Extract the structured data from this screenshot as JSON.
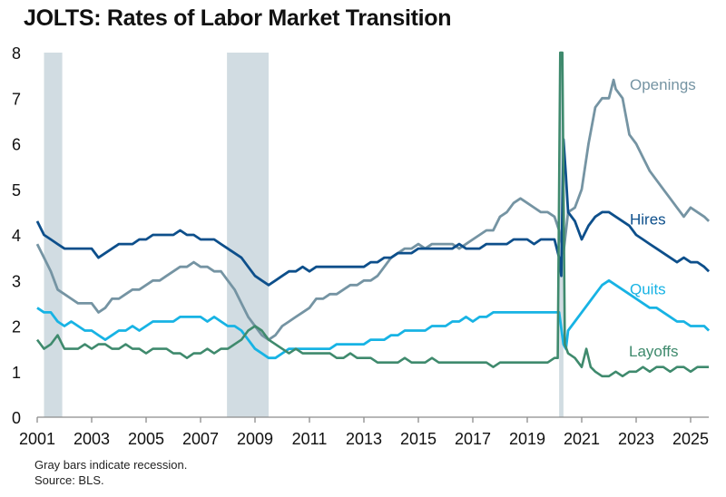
{
  "chart_data": {
    "type": "line",
    "title": "JOLTS: Rates of Labor Market Transition",
    "xlabel": "",
    "ylabel": "",
    "xlim": [
      2001.0,
      2025.67
    ],
    "ylim": [
      0,
      8
    ],
    "y_ticks": [
      0,
      1,
      2,
      3,
      4,
      5,
      6,
      7,
      8
    ],
    "x_ticks": [
      2001,
      2003,
      2005,
      2007,
      2009,
      2011,
      2013,
      2015,
      2017,
      2019,
      2021,
      2023,
      2025
    ],
    "x_tick_labels": [
      "2001",
      "2003",
      "2005",
      "2007",
      "2009",
      "2011",
      "2013",
      "2015",
      "2017",
      "2019",
      "2021",
      "2023",
      "2025"
    ],
    "grid": false,
    "legend": "inline labels at right end of series",
    "recessions": [
      {
        "start": 2001.25,
        "end": 2001.92
      },
      {
        "start": 2007.97,
        "end": 2009.5
      },
      {
        "start": 2020.17,
        "end": 2020.33
      }
    ],
    "series": [
      {
        "name": "Openings",
        "label": "Openings",
        "color": "#7594a3",
        "x": [
          2001.0,
          2001.25,
          2001.5,
          2001.75,
          2002.0,
          2002.25,
          2002.5,
          2002.75,
          2003.0,
          2003.25,
          2003.5,
          2003.75,
          2004.0,
          2004.25,
          2004.5,
          2004.75,
          2005.0,
          2005.25,
          2005.5,
          2005.75,
          2006.0,
          2006.25,
          2006.5,
          2006.75,
          2007.0,
          2007.25,
          2007.5,
          2007.75,
          2008.0,
          2008.25,
          2008.5,
          2008.75,
          2009.0,
          2009.25,
          2009.5,
          2009.75,
          2010.0,
          2010.25,
          2010.5,
          2010.75,
          2011.0,
          2011.25,
          2011.5,
          2011.75,
          2012.0,
          2012.25,
          2012.5,
          2012.75,
          2013.0,
          2013.25,
          2013.5,
          2013.75,
          2014.0,
          2014.25,
          2014.5,
          2014.75,
          2015.0,
          2015.25,
          2015.5,
          2015.75,
          2016.0,
          2016.25,
          2016.5,
          2016.75,
          2017.0,
          2017.25,
          2017.5,
          2017.75,
          2018.0,
          2018.25,
          2018.5,
          2018.75,
          2019.0,
          2019.25,
          2019.5,
          2019.75,
          2020.0,
          2020.17,
          2020.33,
          2020.5,
          2020.75,
          2021.0,
          2021.25,
          2021.5,
          2021.75,
          2022.0,
          2022.17,
          2022.25,
          2022.5,
          2022.75,
          2023.0,
          2023.25,
          2023.5,
          2023.75,
          2024.0,
          2024.25,
          2024.5,
          2024.75,
          2025.0,
          2025.25,
          2025.5,
          2025.67
        ],
        "values": [
          3.8,
          3.5,
          3.2,
          2.8,
          2.7,
          2.6,
          2.5,
          2.5,
          2.5,
          2.3,
          2.4,
          2.6,
          2.6,
          2.7,
          2.8,
          2.8,
          2.9,
          3.0,
          3.0,
          3.1,
          3.2,
          3.3,
          3.3,
          3.4,
          3.3,
          3.3,
          3.2,
          3.2,
          3.0,
          2.8,
          2.5,
          2.2,
          2.0,
          1.8,
          1.7,
          1.8,
          2.0,
          2.1,
          2.2,
          2.3,
          2.4,
          2.6,
          2.6,
          2.7,
          2.7,
          2.8,
          2.9,
          2.9,
          3.0,
          3.0,
          3.1,
          3.3,
          3.5,
          3.6,
          3.7,
          3.7,
          3.8,
          3.7,
          3.8,
          3.8,
          3.8,
          3.8,
          3.7,
          3.8,
          3.9,
          4.0,
          4.1,
          4.1,
          4.4,
          4.5,
          4.7,
          4.8,
          4.7,
          4.6,
          4.5,
          4.5,
          4.4,
          4.1,
          3.6,
          4.5,
          4.6,
          5.0,
          6.0,
          6.8,
          7.0,
          7.0,
          7.4,
          7.2,
          7.0,
          6.2,
          6.0,
          5.7,
          5.4,
          5.2,
          5.0,
          4.8,
          4.6,
          4.4,
          4.6,
          4.5,
          4.4,
          4.3
        ]
      },
      {
        "name": "Hires",
        "label": "Hires",
        "color": "#0d4f8b",
        "x": [
          2001.0,
          2001.25,
          2001.5,
          2001.75,
          2002.0,
          2002.25,
          2002.5,
          2002.75,
          2003.0,
          2003.25,
          2003.5,
          2003.75,
          2004.0,
          2004.25,
          2004.5,
          2004.75,
          2005.0,
          2005.25,
          2005.5,
          2005.75,
          2006.0,
          2006.25,
          2006.5,
          2006.75,
          2007.0,
          2007.25,
          2007.5,
          2007.75,
          2008.0,
          2008.25,
          2008.5,
          2008.75,
          2009.0,
          2009.25,
          2009.5,
          2009.75,
          2010.0,
          2010.25,
          2010.5,
          2010.75,
          2011.0,
          2011.25,
          2011.5,
          2011.75,
          2012.0,
          2012.25,
          2012.5,
          2012.75,
          2013.0,
          2013.25,
          2013.5,
          2013.75,
          2014.0,
          2014.25,
          2014.5,
          2014.75,
          2015.0,
          2015.25,
          2015.5,
          2015.75,
          2016.0,
          2016.25,
          2016.5,
          2016.75,
          2017.0,
          2017.25,
          2017.5,
          2017.75,
          2018.0,
          2018.25,
          2018.5,
          2018.75,
          2019.0,
          2019.25,
          2019.5,
          2019.75,
          2020.0,
          2020.17,
          2020.25,
          2020.33,
          2020.42,
          2020.5,
          2020.75,
          2021.0,
          2021.25,
          2021.5,
          2021.75,
          2022.0,
          2022.25,
          2022.5,
          2022.75,
          2023.0,
          2023.25,
          2023.5,
          2023.75,
          2024.0,
          2024.25,
          2024.5,
          2024.75,
          2025.0,
          2025.25,
          2025.5,
          2025.67
        ],
        "values": [
          4.3,
          4.0,
          3.9,
          3.8,
          3.7,
          3.7,
          3.7,
          3.7,
          3.7,
          3.5,
          3.6,
          3.7,
          3.8,
          3.8,
          3.8,
          3.9,
          3.9,
          4.0,
          4.0,
          4.0,
          4.0,
          4.1,
          4.0,
          4.0,
          3.9,
          3.9,
          3.9,
          3.8,
          3.7,
          3.6,
          3.5,
          3.3,
          3.1,
          3.0,
          2.9,
          3.0,
          3.1,
          3.2,
          3.2,
          3.3,
          3.2,
          3.3,
          3.3,
          3.3,
          3.3,
          3.3,
          3.3,
          3.3,
          3.3,
          3.4,
          3.4,
          3.5,
          3.5,
          3.6,
          3.6,
          3.6,
          3.7,
          3.7,
          3.7,
          3.7,
          3.7,
          3.7,
          3.8,
          3.7,
          3.7,
          3.7,
          3.8,
          3.8,
          3.8,
          3.8,
          3.9,
          3.9,
          3.9,
          3.8,
          3.9,
          3.9,
          3.9,
          3.5,
          3.1,
          6.1,
          5.3,
          4.5,
          4.3,
          3.9,
          4.2,
          4.4,
          4.5,
          4.5,
          4.4,
          4.3,
          4.2,
          4.0,
          3.9,
          3.8,
          3.7,
          3.6,
          3.5,
          3.4,
          3.5,
          3.4,
          3.4,
          3.3,
          3.2
        ]
      },
      {
        "name": "Quits",
        "label": "Quits",
        "color": "#17b3e4",
        "x": [
          2001.0,
          2001.25,
          2001.5,
          2001.75,
          2002.0,
          2002.25,
          2002.5,
          2002.75,
          2003.0,
          2003.25,
          2003.5,
          2003.75,
          2004.0,
          2004.25,
          2004.5,
          2004.75,
          2005.0,
          2005.25,
          2005.5,
          2005.75,
          2006.0,
          2006.25,
          2006.5,
          2006.75,
          2007.0,
          2007.25,
          2007.5,
          2007.75,
          2008.0,
          2008.25,
          2008.5,
          2008.75,
          2009.0,
          2009.25,
          2009.5,
          2009.75,
          2010.0,
          2010.25,
          2010.5,
          2010.75,
          2011.0,
          2011.25,
          2011.5,
          2011.75,
          2012.0,
          2012.25,
          2012.5,
          2012.75,
          2013.0,
          2013.25,
          2013.5,
          2013.75,
          2014.0,
          2014.25,
          2014.5,
          2014.75,
          2015.0,
          2015.25,
          2015.5,
          2015.75,
          2016.0,
          2016.25,
          2016.5,
          2016.75,
          2017.0,
          2017.25,
          2017.5,
          2017.75,
          2018.0,
          2018.25,
          2018.5,
          2018.75,
          2019.0,
          2019.25,
          2019.5,
          2019.75,
          2020.0,
          2020.17,
          2020.33,
          2020.42,
          2020.5,
          2020.75,
          2021.0,
          2021.25,
          2021.5,
          2021.75,
          2022.0,
          2022.25,
          2022.5,
          2022.75,
          2023.0,
          2023.25,
          2023.5,
          2023.75,
          2024.0,
          2024.25,
          2024.5,
          2024.75,
          2025.0,
          2025.25,
          2025.5,
          2025.67
        ],
        "values": [
          2.4,
          2.3,
          2.3,
          2.1,
          2.0,
          2.1,
          2.0,
          1.9,
          1.9,
          1.8,
          1.7,
          1.8,
          1.9,
          1.9,
          2.0,
          1.9,
          2.0,
          2.1,
          2.1,
          2.1,
          2.1,
          2.2,
          2.2,
          2.2,
          2.2,
          2.1,
          2.2,
          2.1,
          2.0,
          2.0,
          1.9,
          1.7,
          1.5,
          1.4,
          1.3,
          1.3,
          1.4,
          1.5,
          1.5,
          1.5,
          1.5,
          1.5,
          1.5,
          1.5,
          1.6,
          1.6,
          1.6,
          1.6,
          1.6,
          1.7,
          1.7,
          1.7,
          1.8,
          1.8,
          1.9,
          1.9,
          1.9,
          1.9,
          2.0,
          2.0,
          2.0,
          2.1,
          2.1,
          2.2,
          2.1,
          2.2,
          2.2,
          2.3,
          2.3,
          2.3,
          2.3,
          2.3,
          2.3,
          2.3,
          2.3,
          2.3,
          2.3,
          2.3,
          1.6,
          1.5,
          1.9,
          2.1,
          2.3,
          2.5,
          2.7,
          2.9,
          3.0,
          2.9,
          2.8,
          2.7,
          2.6,
          2.5,
          2.4,
          2.4,
          2.3,
          2.2,
          2.1,
          2.1,
          2.0,
          2.0,
          2.0,
          1.9
        ]
      },
      {
        "name": "Layoffs",
        "label": "Layoffs",
        "color": "#3f8a6d",
        "x": [
          2001.0,
          2001.25,
          2001.5,
          2001.75,
          2002.0,
          2002.25,
          2002.5,
          2002.75,
          2003.0,
          2003.25,
          2003.5,
          2003.75,
          2004.0,
          2004.25,
          2004.5,
          2004.75,
          2005.0,
          2005.25,
          2005.5,
          2005.75,
          2006.0,
          2006.25,
          2006.5,
          2006.75,
          2007.0,
          2007.25,
          2007.5,
          2007.75,
          2008.0,
          2008.25,
          2008.5,
          2008.75,
          2009.0,
          2009.25,
          2009.5,
          2009.75,
          2010.0,
          2010.25,
          2010.5,
          2010.75,
          2011.0,
          2011.25,
          2011.5,
          2011.75,
          2012.0,
          2012.25,
          2012.5,
          2012.75,
          2013.0,
          2013.25,
          2013.5,
          2013.75,
          2014.0,
          2014.25,
          2014.5,
          2014.75,
          2015.0,
          2015.25,
          2015.5,
          2015.75,
          2016.0,
          2016.25,
          2016.5,
          2016.75,
          2017.0,
          2017.25,
          2017.5,
          2017.75,
          2018.0,
          2018.25,
          2018.5,
          2018.75,
          2019.0,
          2019.25,
          2019.5,
          2019.75,
          2020.0,
          2020.12,
          2020.21,
          2020.29,
          2020.38,
          2020.5,
          2020.75,
          2021.0,
          2021.17,
          2021.33,
          2021.5,
          2021.75,
          2022.0,
          2022.25,
          2022.5,
          2022.75,
          2023.0,
          2023.25,
          2023.5,
          2023.75,
          2024.0,
          2024.25,
          2024.5,
          2024.75,
          2025.0,
          2025.25,
          2025.5,
          2025.67
        ],
        "values": [
          1.7,
          1.5,
          1.6,
          1.8,
          1.5,
          1.5,
          1.5,
          1.6,
          1.5,
          1.6,
          1.6,
          1.5,
          1.5,
          1.6,
          1.5,
          1.5,
          1.4,
          1.5,
          1.5,
          1.5,
          1.4,
          1.4,
          1.3,
          1.4,
          1.4,
          1.5,
          1.4,
          1.5,
          1.5,
          1.6,
          1.7,
          1.9,
          2.0,
          1.9,
          1.7,
          1.6,
          1.5,
          1.4,
          1.5,
          1.4,
          1.4,
          1.4,
          1.4,
          1.4,
          1.3,
          1.3,
          1.4,
          1.3,
          1.3,
          1.3,
          1.2,
          1.2,
          1.2,
          1.2,
          1.3,
          1.2,
          1.2,
          1.2,
          1.3,
          1.2,
          1.2,
          1.2,
          1.2,
          1.2,
          1.2,
          1.2,
          1.2,
          1.1,
          1.2,
          1.2,
          1.2,
          1.2,
          1.2,
          1.2,
          1.2,
          1.2,
          1.3,
          1.3,
          8.0,
          8.0,
          1.6,
          1.4,
          1.3,
          1.1,
          1.5,
          1.1,
          1.0,
          0.9,
          0.9,
          1.0,
          0.9,
          1.0,
          1.0,
          1.1,
          1.0,
          1.1,
          1.1,
          1.0,
          1.1,
          1.1,
          1.0,
          1.1,
          1.1,
          1.1
        ]
      }
    ]
  },
  "footnotes": {
    "recession_note": "Gray bars indicate recession.",
    "source": "Source: BLS."
  },
  "colors": {
    "recession_fill": "#d1dce2",
    "axis": "#8c8c8c"
  }
}
